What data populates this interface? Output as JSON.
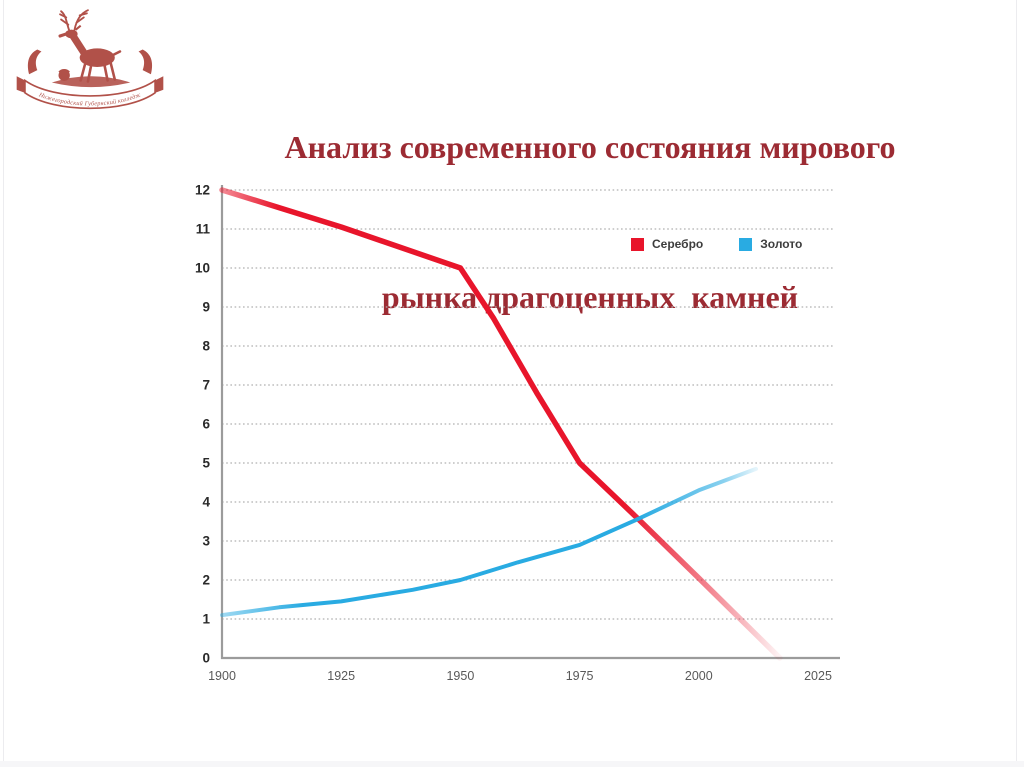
{
  "page": {
    "background": "#ffffff",
    "frame_border": "#ececef",
    "footer_strip": "#f6f6f8"
  },
  "slide": {
    "title_line1": "Анализ современного состояния мирового",
    "title_line2": "рынка драгоценных  камней",
    "title_color": "#9c2b33"
  },
  "logo": {
    "description": "deer-emblem",
    "ribbon_text": "Нижегородский Губернский колледж",
    "color": "#b15149"
  },
  "chart_data": {
    "type": "line",
    "title": "",
    "xlabel": "",
    "ylabel": "",
    "xlim": [
      1900,
      2025
    ],
    "ylim": [
      0,
      12
    ],
    "x_ticks": [
      1900,
      1925,
      1950,
      1975,
      2000,
      2025
    ],
    "y_ticks": [
      0,
      1,
      2,
      3,
      4,
      5,
      6,
      7,
      8,
      9,
      10,
      11,
      12
    ],
    "grid": "horizontal-dotted",
    "legend_position": "inside-top-right",
    "legend": [
      "Серебро",
      "Золото"
    ],
    "series": [
      {
        "name": "Серебро",
        "color": "#e8152b",
        "points": [
          [
            1900,
            12
          ],
          [
            1925,
            11.05
          ],
          [
            1950,
            10
          ],
          [
            1957,
            8.7
          ],
          [
            1966,
            6.8
          ],
          [
            1975,
            5.0
          ],
          [
            1987,
            3.6
          ],
          [
            2000,
            2.05
          ],
          [
            2017,
            0
          ]
        ]
      },
      {
        "name": "Золото",
        "color": "#29abe2",
        "points": [
          [
            1900,
            1.1
          ],
          [
            1912,
            1.3
          ],
          [
            1925,
            1.45
          ],
          [
            1940,
            1.75
          ],
          [
            1950,
            2.0
          ],
          [
            1962,
            2.45
          ],
          [
            1975,
            2.9
          ],
          [
            1987,
            3.55
          ],
          [
            2000,
            4.3
          ],
          [
            2012,
            4.85
          ]
        ]
      }
    ]
  }
}
